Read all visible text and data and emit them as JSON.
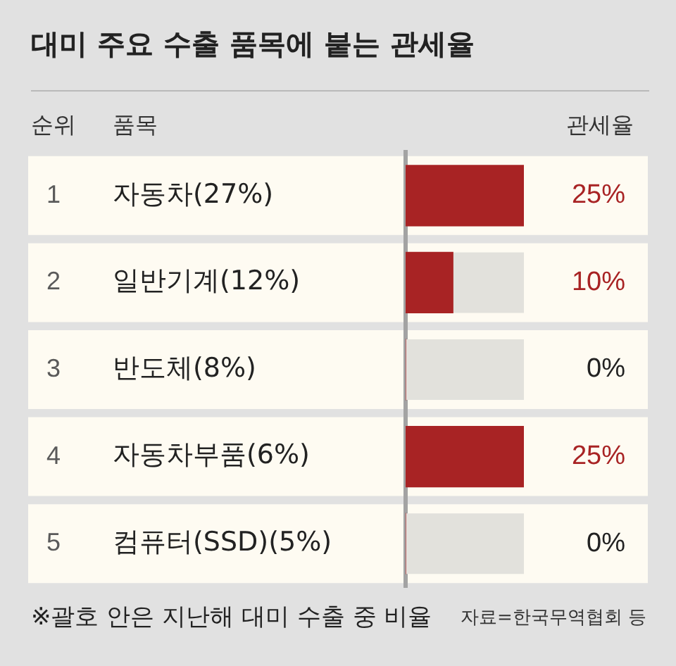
{
  "chart_data": {
    "type": "bar",
    "orientation": "horizontal",
    "title": "대미 주요 수출 품목에 붙는 관세율",
    "xlabel": "관세율",
    "ylabel": "품목",
    "categories": [
      "자동차(27%)",
      "일반기계(12%)",
      "반도체(8%)",
      "자동차부품(6%)",
      "컴퓨터(SSD)(5%)"
    ],
    "values": [
      25,
      10,
      0,
      25,
      0
    ],
    "color": "#a82324",
    "value_labels": [
      "25%",
      "10%",
      "0%",
      "25%",
      "0%"
    ],
    "xlim": [
      0,
      25
    ],
    "tick_labels": "y",
    "bands": [
      {
        "axis": "x",
        "from": 0,
        "to": 25,
        "color": "#e2e1dc"
      }
    ],
    "annotations": [
      "순위",
      "1",
      "2",
      "3",
      "4",
      "5",
      "※괄호 안은 지난해 대미 수출 중 비율",
      "자료=한국무역협회 등"
    ]
  }
}
